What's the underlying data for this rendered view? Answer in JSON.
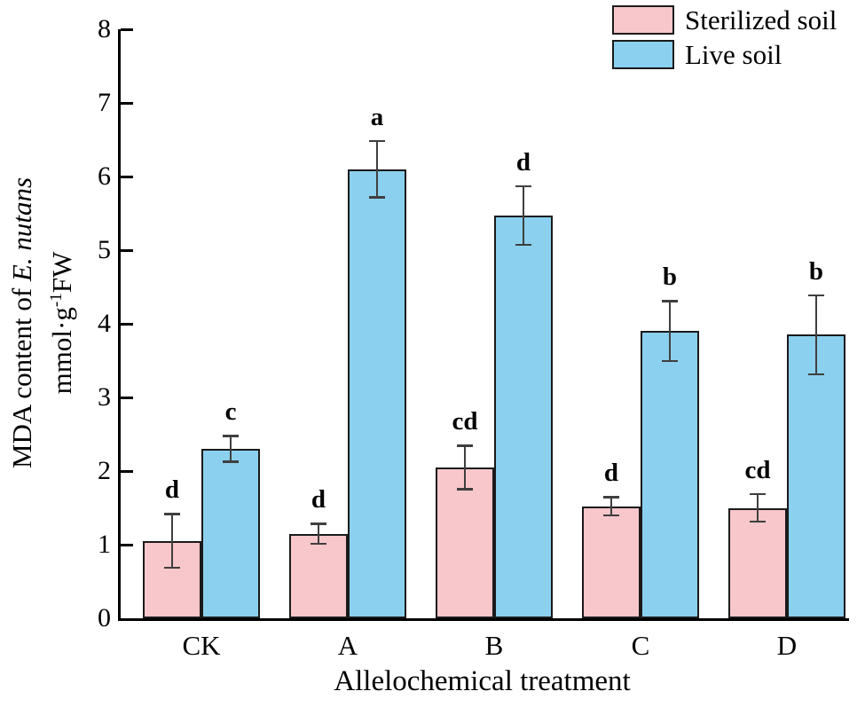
{
  "figure": {
    "xlabel": "Allelochemical treatment",
    "ylabel_line1_prefix": "MDA content of ",
    "ylabel_line1_italic": "E. nutans",
    "ylabel_line2_base": "mmol·g",
    "ylabel_line2_sup": "-1",
    "ylabel_line2_suffix": "FW"
  },
  "legend": {
    "position": "top-right",
    "items": [
      {
        "label": "Sterilized soil",
        "color": "#f8c7cb"
      },
      {
        "label": "Live soil",
        "color": "#8bd0ee"
      }
    ]
  },
  "chart_data": {
    "type": "bar",
    "title": "",
    "xlabel": "Allelochemical treatment",
    "ylabel": "MDA content of E. nutans mmol·g-1FW",
    "categories": [
      "CK",
      "A",
      "B",
      "C",
      "D"
    ],
    "ylim": [
      0,
      8
    ],
    "yticks": [
      0,
      1,
      2,
      3,
      4,
      5,
      6,
      7,
      8
    ],
    "grid": false,
    "legend_position": "top-right",
    "error_bars": true,
    "series": [
      {
        "name": "Sterilized soil",
        "color": "#f8c7cb",
        "values": [
          1.05,
          1.15,
          2.05,
          1.52,
          1.5
        ],
        "errors": [
          0.38,
          0.15,
          0.31,
          0.14,
          0.2
        ],
        "letters": [
          "d",
          "d",
          "cd",
          "d",
          "cd"
        ]
      },
      {
        "name": "Live soil",
        "color": "#8bd0ee",
        "values": [
          2.3,
          6.1,
          5.47,
          3.9,
          3.85
        ],
        "errors": [
          0.19,
          0.4,
          0.41,
          0.42,
          0.55
        ],
        "letters": [
          "c",
          "a",
          "d",
          "b",
          "b"
        ]
      }
    ],
    "colors": {
      "bar_border": "#1a1a1a",
      "error_bar": "#3f3f3f",
      "axis": "#000000"
    }
  }
}
